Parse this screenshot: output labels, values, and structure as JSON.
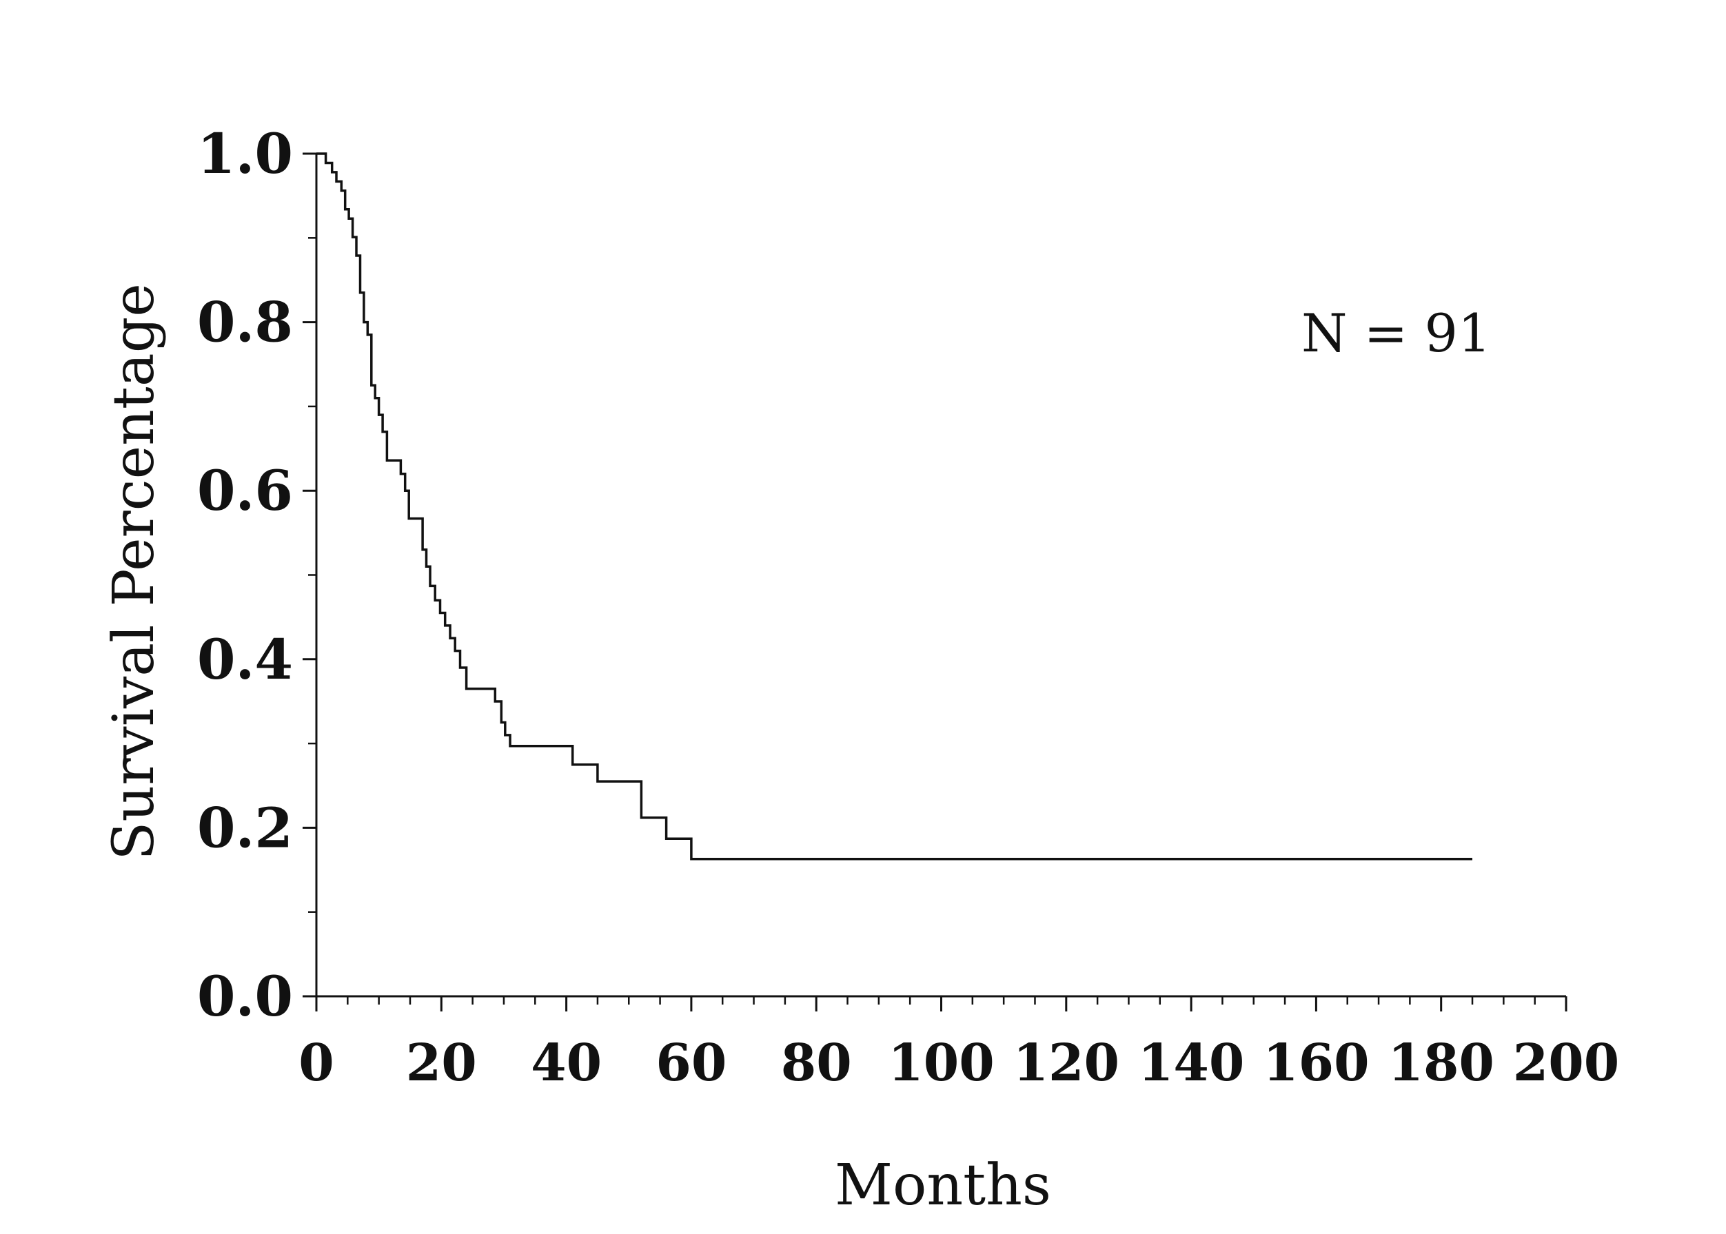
{
  "chart_data": {
    "type": "line",
    "title": "",
    "xlabel": "Months",
    "ylabel": "Survival Percentage",
    "xlim": [
      0,
      200
    ],
    "ylim": [
      0,
      1.0
    ],
    "x_ticks": [
      0,
      20,
      40,
      60,
      80,
      100,
      120,
      140,
      160,
      180,
      200
    ],
    "x_tick_labels": [
      "0",
      "20",
      "40",
      "60",
      "80",
      "100",
      "120",
      "140",
      "160",
      "180",
      "200"
    ],
    "y_ticks": [
      0.0,
      0.2,
      0.4,
      0.6,
      0.8,
      1.0
    ],
    "y_tick_labels": [
      "0.0",
      "0.2",
      "0.4",
      "0.6",
      "0.8",
      "1.0"
    ],
    "grid": false,
    "step": true,
    "annotation": "N = 91",
    "series": [
      {
        "color": "#111111",
        "x": [
          0,
          1.5,
          2.5,
          3.2,
          4.0,
          4.6,
          5.2,
          5.8,
          6.4,
          7.0,
          7.6,
          8.2,
          8.8,
          9.4,
          10.0,
          10.6,
          11.3,
          13.5,
          14.2,
          14.8,
          17.0,
          17.6,
          18.2,
          19.0,
          19.8,
          20.6,
          21.4,
          22.2,
          23.0,
          24.0,
          25.5,
          28.6,
          29.6,
          30.2,
          31.0,
          41.0,
          45.0,
          52.0,
          56.0,
          60.0,
          185.0
        ],
        "y": [
          1.0,
          0.989,
          0.978,
          0.967,
          0.956,
          0.934,
          0.923,
          0.901,
          0.879,
          0.835,
          0.8,
          0.785,
          0.725,
          0.71,
          0.69,
          0.67,
          0.636,
          0.62,
          0.6,
          0.567,
          0.53,
          0.51,
          0.487,
          0.47,
          0.455,
          0.44,
          0.425,
          0.41,
          0.39,
          0.365,
          0.365,
          0.35,
          0.325,
          0.31,
          0.297,
          0.275,
          0.255,
          0.212,
          0.187,
          0.163,
          0.163
        ]
      }
    ]
  }
}
